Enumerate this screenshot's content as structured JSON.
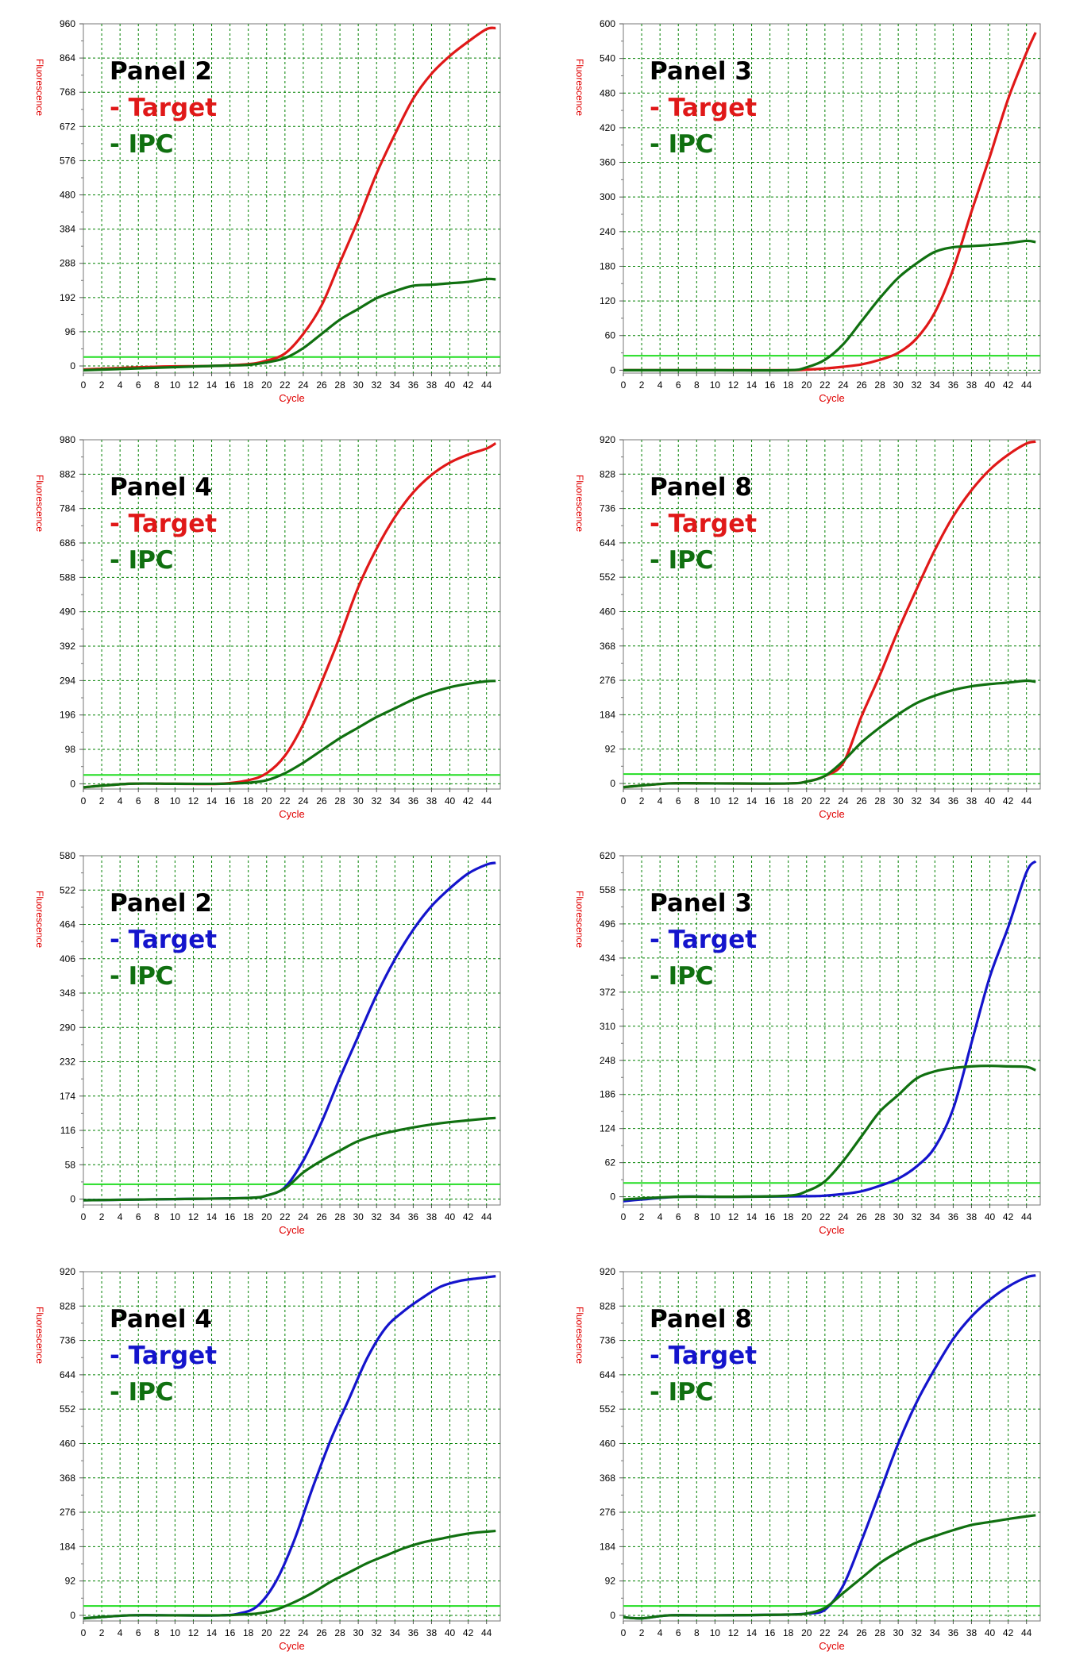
{
  "colors": {
    "grid": "#008000",
    "axis_text": "#000000",
    "axis_title": "#e00000",
    "threshold": "#22dd22",
    "red": "#e01818",
    "blue": "#1414cc",
    "green": "#107010"
  },
  "chart_data": [
    {
      "type": "line",
      "title": "Panel 2",
      "xlabel": "Cycle",
      "ylabel": "Fluorescence",
      "xlim": [
        0,
        45.5
      ],
      "ylim": [
        -20,
        960
      ],
      "threshold": 25,
      "grid": true,
      "xticks": [
        "0",
        "2",
        "4",
        "6",
        "8",
        "10",
        "12",
        "14",
        "16",
        "18",
        "20",
        "22",
        "24",
        "26",
        "28",
        "30",
        "32",
        "34",
        "36",
        "38",
        "40",
        "42",
        "44"
      ],
      "yticks": [
        "0",
        "96",
        "192",
        "288",
        "384",
        "480",
        "576",
        "672",
        "768",
        "864",
        "960"
      ],
      "legend": [
        {
          "text": "- ",
          "name": "Target",
          "color": "red"
        },
        {
          "text": "- IPC",
          "color": "green"
        }
      ],
      "series": [
        {
          "name": "Target",
          "color": "red",
          "x": [
            0,
            8,
            14,
            18,
            20,
            22,
            24,
            26,
            28,
            30,
            32,
            34,
            36,
            38,
            40,
            42,
            44,
            45
          ],
          "y": [
            -10,
            -2,
            0,
            5,
            15,
            35,
            90,
            170,
            290,
            410,
            540,
            650,
            750,
            820,
            870,
            910,
            945,
            948
          ]
        },
        {
          "name": "IPC",
          "color": "green",
          "x": [
            0,
            8,
            14,
            18,
            20,
            22,
            24,
            26,
            28,
            30,
            32,
            34,
            36,
            38,
            40,
            42,
            44,
            45
          ],
          "y": [
            -12,
            -5,
            0,
            3,
            10,
            22,
            50,
            90,
            130,
            160,
            190,
            210,
            225,
            228,
            232,
            236,
            244,
            243
          ]
        }
      ]
    },
    {
      "type": "line",
      "title": "Panel 3",
      "xlabel": "Cycle",
      "ylabel": "Fluorescence",
      "xlim": [
        0,
        45.5
      ],
      "ylim": [
        -5,
        600
      ],
      "threshold": 25,
      "grid": true,
      "xticks": [
        "0",
        "2",
        "4",
        "6",
        "8",
        "10",
        "12",
        "14",
        "16",
        "18",
        "20",
        "22",
        "24",
        "26",
        "28",
        "30",
        "32",
        "34",
        "36",
        "38",
        "40",
        "42",
        "44"
      ],
      "yticks": [
        "0",
        "60",
        "120",
        "180",
        "240",
        "300",
        "360",
        "420",
        "480",
        "540",
        "600"
      ],
      "legend": [
        {
          "text": "- ",
          "name": "Target",
          "color": "red"
        },
        {
          "text": "- IPC",
          "color": "green"
        }
      ],
      "series": [
        {
          "name": "Target",
          "color": "red",
          "x": [
            0,
            10,
            18,
            20,
            22,
            24,
            26,
            28,
            30,
            32,
            34,
            36,
            38,
            40,
            42,
            44,
            45
          ],
          "y": [
            0,
            0,
            0,
            1,
            3,
            6,
            10,
            18,
            30,
            55,
            100,
            175,
            275,
            370,
            470,
            550,
            585
          ]
        },
        {
          "name": "IPC",
          "color": "green",
          "x": [
            0,
            10,
            18,
            20,
            22,
            24,
            26,
            28,
            30,
            32,
            34,
            36,
            38,
            40,
            42,
            44,
            45
          ],
          "y": [
            0,
            0,
            0,
            5,
            18,
            45,
            85,
            125,
            160,
            185,
            205,
            213,
            215,
            217,
            220,
            224,
            222
          ]
        }
      ]
    },
    {
      "type": "line",
      "title": "Panel 4",
      "xlabel": "Cycle",
      "ylabel": "Fluorescence",
      "xlim": [
        0,
        45.5
      ],
      "ylim": [
        -15,
        980
      ],
      "threshold": 25,
      "grid": true,
      "xticks": [
        "0",
        "2",
        "4",
        "6",
        "8",
        "10",
        "12",
        "14",
        "16",
        "18",
        "20",
        "22",
        "24",
        "26",
        "28",
        "30",
        "32",
        "34",
        "36",
        "38",
        "40",
        "42",
        "44"
      ],
      "yticks": [
        "0",
        "98",
        "196",
        "294",
        "392",
        "490",
        "588",
        "686",
        "784",
        "882",
        "980"
      ],
      "legend": [
        {
          "text": "- ",
          "name": "Target",
          "color": "red"
        },
        {
          "text": "- IPC",
          "color": "green"
        }
      ],
      "series": [
        {
          "name": "Target",
          "color": "red",
          "x": [
            0,
            5,
            10,
            15,
            18,
            20,
            22,
            24,
            26,
            28,
            30,
            32,
            34,
            36,
            38,
            40,
            42,
            44,
            45
          ],
          "y": [
            -10,
            0,
            0,
            0,
            10,
            30,
            80,
            170,
            290,
            420,
            560,
            670,
            760,
            830,
            880,
            915,
            938,
            955,
            970
          ]
        },
        {
          "name": "IPC",
          "color": "green",
          "x": [
            0,
            5,
            10,
            15,
            18,
            20,
            22,
            24,
            26,
            28,
            30,
            32,
            34,
            36,
            38,
            40,
            42,
            44,
            45
          ],
          "y": [
            -10,
            0,
            0,
            0,
            3,
            10,
            30,
            60,
            95,
            130,
            160,
            190,
            215,
            240,
            260,
            275,
            285,
            292,
            293
          ]
        }
      ]
    },
    {
      "type": "line",
      "title": "Panel 8",
      "xlabel": "Cycle",
      "ylabel": "Fluorescence",
      "xlim": [
        0,
        45.5
      ],
      "ylim": [
        -15,
        920
      ],
      "threshold": 25,
      "grid": true,
      "xticks": [
        "0",
        "2",
        "4",
        "6",
        "8",
        "10",
        "12",
        "14",
        "16",
        "18",
        "20",
        "22",
        "24",
        "26",
        "28",
        "30",
        "32",
        "34",
        "36",
        "38",
        "40",
        "42",
        "44"
      ],
      "yticks": [
        "0",
        "92",
        "184",
        "276",
        "368",
        "460",
        "552",
        "644",
        "736",
        "828",
        "920"
      ],
      "legend": [
        {
          "text": "- ",
          "name": "Target",
          "color": "red"
        },
        {
          "text": "- IPC",
          "color": "green"
        }
      ],
      "series": [
        {
          "name": "Target",
          "color": "red",
          "x": [
            0,
            5,
            10,
            18,
            20,
            22,
            24,
            26,
            28,
            30,
            32,
            34,
            36,
            38,
            40,
            42,
            44,
            45
          ],
          "y": [
            -10,
            0,
            0,
            0,
            5,
            20,
            55,
            180,
            290,
            410,
            520,
            625,
            715,
            785,
            840,
            880,
            910,
            915
          ]
        },
        {
          "name": "IPC",
          "color": "green",
          "x": [
            0,
            5,
            10,
            18,
            20,
            22,
            24,
            26,
            28,
            30,
            32,
            34,
            36,
            38,
            40,
            42,
            44,
            45
          ],
          "y": [
            -10,
            0,
            0,
            0,
            5,
            20,
            60,
            110,
            150,
            185,
            215,
            235,
            250,
            260,
            266,
            270,
            275,
            272
          ]
        }
      ]
    },
    {
      "type": "line",
      "title": "Panel 2",
      "xlabel": "Cycle",
      "ylabel": "Fluorescence",
      "xlim": [
        0,
        45.5
      ],
      "ylim": [
        -10,
        580
      ],
      "threshold": 25,
      "grid": true,
      "xticks": [
        "0",
        "2",
        "4",
        "6",
        "8",
        "10",
        "12",
        "14",
        "16",
        "18",
        "20",
        "22",
        "24",
        "26",
        "28",
        "30",
        "32",
        "34",
        "36",
        "38",
        "40",
        "42",
        "44"
      ],
      "yticks": [
        "0",
        "58",
        "116",
        "174",
        "232",
        "290",
        "348",
        "406",
        "464",
        "522",
        "580"
      ],
      "legend": [
        {
          "text": "- ",
          "name": "Target",
          "color": "blue"
        },
        {
          "text": "- IPC",
          "color": "green"
        }
      ],
      "series": [
        {
          "name": "Target",
          "color": "blue",
          "x": [
            0,
            10,
            18,
            20,
            22,
            24,
            26,
            28,
            30,
            32,
            34,
            36,
            38,
            40,
            42,
            44,
            45
          ],
          "y": [
            -2,
            0,
            2,
            6,
            20,
            65,
            130,
            205,
            275,
            345,
            405,
            455,
            495,
            525,
            550,
            565,
            568
          ]
        },
        {
          "name": "IPC",
          "color": "green",
          "x": [
            0,
            10,
            18,
            20,
            22,
            24,
            26,
            28,
            30,
            32,
            34,
            36,
            38,
            40,
            42,
            44,
            45
          ],
          "y": [
            -2,
            0,
            2,
            6,
            18,
            45,
            65,
            82,
            98,
            108,
            115,
            121,
            126,
            130,
            133,
            136,
            137
          ]
        }
      ]
    },
    {
      "type": "line",
      "title": "Panel 3",
      "xlabel": "Cycle",
      "ylabel": "Fluorescence",
      "xlim": [
        0,
        45.5
      ],
      "ylim": [
        -15,
        620
      ],
      "threshold": 25,
      "grid": true,
      "xticks": [
        "0",
        "2",
        "4",
        "6",
        "8",
        "10",
        "12",
        "14",
        "16",
        "18",
        "20",
        "22",
        "24",
        "26",
        "28",
        "30",
        "32",
        "34",
        "36",
        "38",
        "40",
        "42",
        "44"
      ],
      "yticks": [
        "0",
        "62",
        "124",
        "186",
        "248",
        "310",
        "372",
        "434",
        "496",
        "558",
        "620"
      ],
      "legend": [
        {
          "text": "- ",
          "name": "Target",
          "color": "blue"
        },
        {
          "text": "- IPC",
          "color": "green"
        }
      ],
      "series": [
        {
          "name": "Target",
          "color": "blue",
          "x": [
            0,
            2,
            6,
            12,
            20,
            22,
            24,
            26,
            28,
            30,
            32,
            34,
            36,
            38,
            40,
            42,
            44,
            45
          ],
          "y": [
            -8,
            -5,
            0,
            0,
            1,
            2,
            5,
            10,
            20,
            33,
            55,
            90,
            160,
            280,
            400,
            490,
            590,
            610
          ]
        },
        {
          "name": "IPC",
          "color": "green",
          "x": [
            0,
            2,
            6,
            12,
            18,
            20,
            22,
            24,
            26,
            28,
            30,
            32,
            34,
            36,
            38,
            40,
            42,
            44,
            45
          ],
          "y": [
            -5,
            -3,
            0,
            0,
            2,
            10,
            28,
            65,
            110,
            155,
            185,
            215,
            228,
            234,
            237,
            238,
            237,
            236,
            230
          ]
        }
      ]
    },
    {
      "type": "line",
      "title": "Panel 4",
      "xlabel": "Cycle",
      "ylabel": "Fluorescence",
      "xlim": [
        0,
        45.5
      ],
      "ylim": [
        -15,
        920
      ],
      "threshold": 25,
      "grid": true,
      "xticks": [
        "0",
        "2",
        "4",
        "6",
        "8",
        "10",
        "12",
        "14",
        "16",
        "18",
        "20",
        "22",
        "24",
        "26",
        "28",
        "30",
        "32",
        "34",
        "36",
        "38",
        "40",
        "42",
        "44"
      ],
      "yticks": [
        "0",
        "92",
        "184",
        "276",
        "368",
        "460",
        "552",
        "644",
        "736",
        "828",
        "920"
      ],
      "legend": [
        {
          "text": "- ",
          "name": "Target",
          "color": "blue"
        },
        {
          "text": "- IPC",
          "color": "green"
        }
      ],
      "series": [
        {
          "name": "Target",
          "color": "blue",
          "x": [
            0,
            5,
            10,
            15,
            17,
            19,
            21,
            23,
            25,
            27,
            29,
            31,
            33,
            35,
            37,
            39,
            41,
            43,
            45
          ],
          "y": [
            -8,
            0,
            0,
            0,
            5,
            25,
            90,
            200,
            340,
            470,
            580,
            690,
            770,
            815,
            850,
            880,
            895,
            902,
            908
          ]
        },
        {
          "name": "IPC",
          "color": "green",
          "x": [
            0,
            5,
            10,
            15,
            17,
            19,
            21,
            23,
            25,
            27,
            29,
            31,
            33,
            35,
            37,
            39,
            41,
            43,
            45
          ],
          "y": [
            -8,
            0,
            0,
            0,
            2,
            5,
            15,
            35,
            60,
            90,
            115,
            140,
            160,
            180,
            195,
            205,
            215,
            222,
            226
          ]
        }
      ]
    },
    {
      "type": "line",
      "title": "Panel 8",
      "xlabel": "Cycle",
      "ylabel": "Fluorescence",
      "xlim": [
        0,
        45.5
      ],
      "ylim": [
        -15,
        920
      ],
      "threshold": 25,
      "grid": true,
      "xticks": [
        "0",
        "2",
        "4",
        "6",
        "8",
        "10",
        "12",
        "14",
        "16",
        "18",
        "20",
        "22",
        "24",
        "26",
        "28",
        "30",
        "32",
        "34",
        "36",
        "38",
        "40",
        "42",
        "44"
      ],
      "yticks": [
        "0",
        "92",
        "184",
        "276",
        "368",
        "460",
        "552",
        "644",
        "736",
        "828",
        "920"
      ],
      "legend": [
        {
          "text": "- ",
          "name": "Target",
          "color": "blue"
        },
        {
          "text": "- IPC",
          "color": "green"
        }
      ],
      "series": [
        {
          "name": "Target",
          "color": "blue",
          "x": [
            0,
            2,
            5,
            10,
            18,
            20,
            22,
            24,
            26,
            28,
            30,
            32,
            34,
            36,
            38,
            40,
            42,
            44,
            45
          ],
          "y": [
            -5,
            -8,
            0,
            0,
            2,
            5,
            15,
            80,
            200,
            330,
            460,
            570,
            660,
            740,
            800,
            845,
            880,
            905,
            910
          ]
        },
        {
          "name": "IPC",
          "color": "green",
          "x": [
            0,
            2,
            5,
            10,
            18,
            20,
            22,
            24,
            26,
            28,
            30,
            32,
            34,
            36,
            38,
            40,
            42,
            44,
            45
          ],
          "y": [
            -5,
            -8,
            0,
            0,
            2,
            5,
            20,
            60,
            100,
            140,
            170,
            195,
            212,
            228,
            242,
            250,
            258,
            265,
            268
          ]
        }
      ]
    }
  ]
}
